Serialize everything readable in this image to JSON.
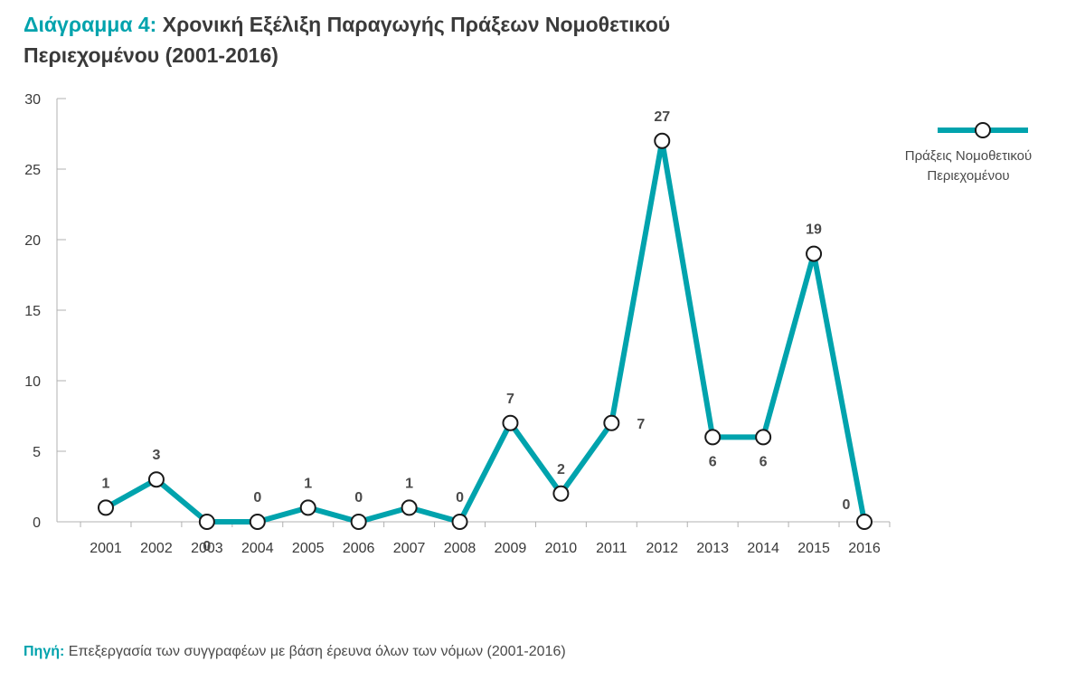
{
  "header": {
    "title_prefix": "Διάγραμμα 4:",
    "title_line1": "Χρονική Εξέλιξη Παραγωγής Πράξεων Νομοθετικού",
    "title_line2": "Περιεχομένου (2001-2016)"
  },
  "footer": {
    "source_label": "Πηγή:",
    "source_text": "Επεξεργασία των συγγραφέων με βάση έρευνα όλων των νόμων (2001-2016)"
  },
  "colors": {
    "accent": "#00a3ad",
    "text": "#3a3a3a",
    "axis": "#b0b0b0",
    "marker_fill": "#ffffff",
    "marker_stroke": "#1a1a1a"
  },
  "chart_data": {
    "type": "line",
    "categories": [
      "2001",
      "2002",
      "2003",
      "2004",
      "2005",
      "2006",
      "2007",
      "2008",
      "2009",
      "2010",
      "2011",
      "2012",
      "2013",
      "2014",
      "2015",
      "2016"
    ],
    "series": [
      {
        "name": "Πράξεις Νομοθετικού Περιεχομένου",
        "legend_lines": [
          "Πράξεις Νομοθετικού",
          "Περιεχομένου"
        ],
        "values": [
          1,
          3,
          0,
          0,
          1,
          0,
          1,
          0,
          7,
          2,
          7,
          27,
          6,
          6,
          19,
          0
        ],
        "labels": [
          "1",
          "3",
          "0",
          "0",
          "1",
          "0",
          "1",
          "0",
          "7",
          "2",
          "7",
          "27",
          "6",
          "6",
          "19",
          "0"
        ]
      }
    ],
    "yticks": [
      "0",
      "5",
      "10",
      "15",
      "20",
      "25",
      "30"
    ],
    "ylim": [
      0,
      30
    ],
    "grid": false,
    "legend_position": "top-right"
  }
}
